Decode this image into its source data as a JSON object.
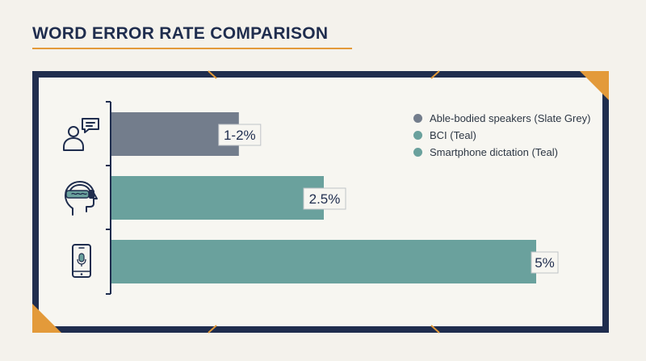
{
  "title": "WORD ERROR RATE COMPARISON",
  "colors": {
    "navy": "#1f2d4e",
    "accent": "#e39a3a",
    "slate": "#737d8c",
    "teal": "#6aa19d",
    "background": "#f4f2ec",
    "panel": "#f7f6f1"
  },
  "chart_data": {
    "type": "bar",
    "orientation": "horizontal",
    "categories": [
      "Able-bodied speakers",
      "BCI",
      "Smartphone dictation"
    ],
    "values": [
      1.5,
      2.5,
      5
    ],
    "value_labels": [
      "1-2%",
      "2.5%",
      "5%"
    ],
    "bar_colors": [
      "#737d8c",
      "#6aa19d",
      "#6aa19d"
    ],
    "category_icons": [
      "speaking-person-icon",
      "bci-headset-icon",
      "smartphone-microphone-icon"
    ],
    "xlim": [
      0,
      5
    ],
    "grid": false,
    "legend_position": "top-right",
    "legend": [
      {
        "label": "Able-bodied speakers (Slate Grey)",
        "color": "#737d8c"
      },
      {
        "label": "BCI (Teal)",
        "color": "#6aa19d"
      },
      {
        "label": "Smartphone dictation (Teal)",
        "color": "#6aa19d"
      }
    ]
  }
}
